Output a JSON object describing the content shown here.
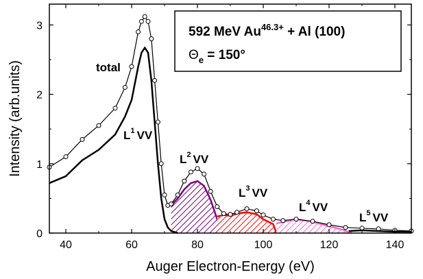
{
  "chart_data": {
    "type": "line",
    "xlabel": "Auger Electron-Energy (eV)",
    "ylabel": "Intensity (arb.units)",
    "xlim": [
      35,
      145
    ],
    "ylim": [
      0,
      3.3
    ],
    "x_ticks": [
      40,
      60,
      80,
      100,
      120,
      140
    ],
    "y_ticks": [
      0,
      1,
      2,
      3
    ],
    "grid": false,
    "legend_box": {
      "line1_main": "592 MeV Au",
      "line1_sup": "46.3+",
      "line1_rest": " + Al (100)",
      "line2_symbol": "Θ",
      "line2_sub": "e",
      "line2_rest": " = 150°"
    },
    "annotations": [
      {
        "base": "total",
        "sup": "",
        "rest": ""
      },
      {
        "base": "L",
        "sup": "1",
        "rest": "VV"
      },
      {
        "base": "L",
        "sup": "2",
        "rest": "VV"
      },
      {
        "base": "L",
        "sup": "3",
        "rest": "VV"
      },
      {
        "base": "L",
        "sup": "4",
        "rest": "VV"
      },
      {
        "base": "L",
        "sup": "5",
        "rest": "VV"
      }
    ],
    "colors": {
      "total": "#000000",
      "L1": "#000000",
      "L2": "#800080",
      "L3": "#ff0000",
      "L4": "#ff66cc",
      "L5": "#000000"
    },
    "series": [
      {
        "key": "total",
        "style": "open-circles-line",
        "x": [
          35,
          40,
          45,
          50,
          55,
          58,
          60,
          62,
          63,
          64,
          65,
          66,
          67,
          68,
          69,
          70,
          71,
          72,
          74,
          76,
          78,
          80,
          82,
          84,
          86,
          88,
          90,
          92,
          95,
          98,
          100,
          103,
          106,
          110,
          115,
          120,
          125,
          130,
          135,
          140,
          145
        ],
        "y": [
          0.95,
          1.1,
          1.35,
          1.55,
          1.8,
          2.1,
          2.4,
          2.9,
          3.05,
          3.12,
          3.05,
          2.8,
          2.2,
          1.6,
          1.0,
          0.55,
          0.4,
          0.42,
          0.55,
          0.75,
          0.88,
          0.93,
          0.85,
          0.6,
          0.38,
          0.28,
          0.27,
          0.3,
          0.35,
          0.32,
          0.26,
          0.2,
          0.18,
          0.2,
          0.17,
          0.12,
          0.08,
          0.07,
          0.06,
          0.04,
          0.03
        ]
      },
      {
        "key": "L1",
        "style": "line",
        "x": [
          35,
          40,
          45,
          50,
          55,
          58,
          60,
          62,
          63,
          64,
          65,
          66,
          67,
          68,
          69,
          70,
          71,
          72,
          74
        ],
        "y": [
          0.72,
          0.82,
          1.05,
          1.2,
          1.42,
          1.68,
          1.92,
          2.4,
          2.6,
          2.67,
          2.6,
          2.2,
          1.6,
          1.0,
          0.5,
          0.2,
          0.08,
          0.03,
          0.0
        ]
      },
      {
        "key": "L2",
        "style": "hatched-fill",
        "x": [
          72,
          74,
          76,
          78,
          80,
          82,
          84,
          86,
          88
        ],
        "y": [
          0.4,
          0.5,
          0.63,
          0.72,
          0.75,
          0.68,
          0.48,
          0.2,
          0.0
        ]
      },
      {
        "key": "L3",
        "style": "hatched-fill",
        "x": [
          86,
          88,
          90,
          92,
          95,
          98,
          100,
          103,
          104
        ],
        "y": [
          0.24,
          0.26,
          0.25,
          0.28,
          0.3,
          0.27,
          0.2,
          0.13,
          0.0
        ]
      },
      {
        "key": "L4",
        "style": "hatched-fill",
        "x": [
          104,
          106,
          110,
          115,
          120,
          124,
          127
        ],
        "y": [
          0.14,
          0.16,
          0.2,
          0.16,
          0.1,
          0.05,
          0.0
        ]
      },
      {
        "key": "L5",
        "style": "line",
        "x": [
          126,
          130,
          135,
          140,
          145
        ],
        "y": [
          0.03,
          0.04,
          0.03,
          0.02,
          0.02
        ]
      }
    ]
  }
}
